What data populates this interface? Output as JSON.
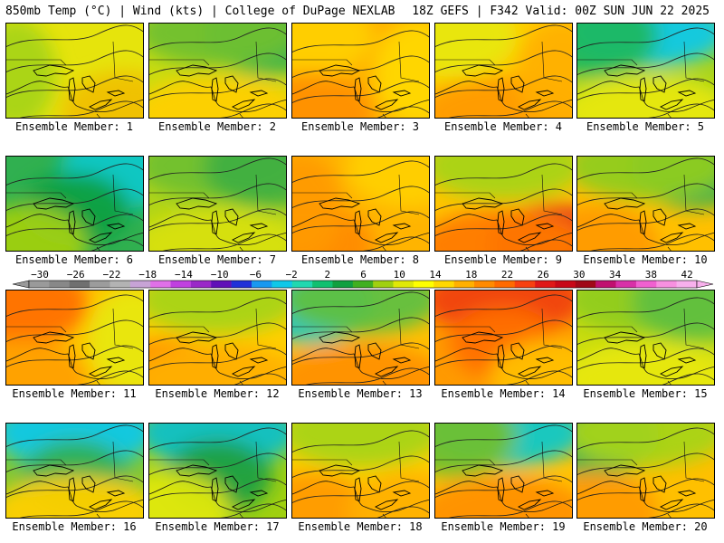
{
  "header": {
    "left_title": "850mb Temp (°C) | Wind (kts) | College of DuPage NEXLAB",
    "right_title": "18Z GEFS | F342 Valid: 00Z SUN JUN 22 2025"
  },
  "colorbar": {
    "labels": [
      "−30",
      "−26",
      "−22",
      "−18",
      "−14",
      "−10",
      "−6",
      "−2",
      "2",
      "6",
      "10",
      "14",
      "18",
      "22",
      "26",
      "30",
      "34",
      "38",
      "42"
    ],
    "colors": [
      "#9a9a9a",
      "#888888",
      "#707070",
      "#9c9c9c",
      "#b3b3b3",
      "#c7a3d6",
      "#e070e8",
      "#c040e0",
      "#9a28c8",
      "#6010b8",
      "#2030d8",
      "#1898f0",
      "#10c8e8",
      "#20d8b0",
      "#10c070",
      "#10a040",
      "#40b020",
      "#a0d010",
      "#e0e808",
      "#ffff00",
      "#ffd800",
      "#ffb000",
      "#ff8a00",
      "#ff6a00",
      "#f84010",
      "#e01818",
      "#c80818",
      "#a00818",
      "#c01070",
      "#d830a8",
      "#f060d0",
      "#f890e0",
      "#f8b0ec"
    ]
  },
  "panels": [
    {
      "label": "Ensemble Member: 1",
      "bg": "#e6e40c",
      "blobs": [
        {
          "c": "#a8d418",
          "s": "w"
        },
        {
          "c": "#f0c000",
          "s": "se"
        }
      ]
    },
    {
      "label": "Ensemble Member: 2",
      "bg": "#c8dc10",
      "blobs": [
        {
          "c": "#30b050",
          "s": "ne"
        },
        {
          "c": "#70c030",
          "s": "n"
        },
        {
          "c": "#ffd000",
          "s": "s"
        }
      ]
    },
    {
      "label": "Ensemble Member: 3",
      "bg": "#ffb000",
      "blobs": [
        {
          "c": "#ffd000",
          "s": "nw"
        },
        {
          "c": "#ff9000",
          "s": "sw"
        },
        {
          "c": "#ffd800",
          "s": "e"
        }
      ]
    },
    {
      "label": "Ensemble Member: 4",
      "bg": "#ffcc00",
      "blobs": [
        {
          "c": "#ff9a00",
          "s": "s"
        },
        {
          "c": "#e8e808",
          "s": "nw"
        },
        {
          "c": "#ffb000",
          "s": "e"
        }
      ]
    },
    {
      "label": "Ensemble Member: 5",
      "bg": "#a8d418",
      "blobs": [
        {
          "c": "#10c8e8",
          "s": "n"
        },
        {
          "c": "#20b860",
          "s": "nw"
        },
        {
          "c": "#e8e808",
          "s": "s"
        }
      ]
    },
    {
      "label": "Ensemble Member: 6",
      "bg": "#30b050",
      "blobs": [
        {
          "c": "#10c8c8",
          "s": "ne"
        },
        {
          "c": "#10a040",
          "s": "c"
        },
        {
          "c": "#a0d010",
          "s": "sw"
        }
      ]
    },
    {
      "label": "Ensemble Member: 7",
      "bg": "#b0d418",
      "blobs": [
        {
          "c": "#70c030",
          "s": "n"
        },
        {
          "c": "#d8e008",
          "s": "s"
        },
        {
          "c": "#40b040",
          "s": "ne"
        }
      ]
    },
    {
      "label": "Ensemble Member: 8",
      "bg": "#ffb400",
      "blobs": [
        {
          "c": "#ff8a00",
          "s": "sw"
        },
        {
          "c": "#ffd000",
          "s": "ne"
        },
        {
          "c": "#ff9a00",
          "s": "w"
        }
      ]
    },
    {
      "label": "Ensemble Member: 9",
      "bg": "#ffc400",
      "blobs": [
        {
          "c": "#e02020",
          "s": "se"
        },
        {
          "c": "#ff7a00",
          "s": "s"
        },
        {
          "c": "#a8d418",
          "s": "n"
        }
      ]
    },
    {
      "label": "Ensemble Member: 10",
      "bg": "#ffc000",
      "blobs": [
        {
          "c": "#30b050",
          "s": "ne"
        },
        {
          "c": "#90cc20",
          "s": "n"
        },
        {
          "c": "#ff9a00",
          "s": "sw"
        }
      ]
    },
    {
      "label": "Ensemble Member: 11",
      "bg": "#ffc400",
      "blobs": [
        {
          "c": "#ff7000",
          "s": "nw"
        },
        {
          "c": "#e8e808",
          "s": "e"
        },
        {
          "c": "#ffa000",
          "s": "sw"
        }
      ]
    },
    {
      "label": "Ensemble Member: 12",
      "bg": "#ffd000",
      "blobs": [
        {
          "c": "#a8d418",
          "s": "n"
        },
        {
          "c": "#ff8a00",
          "s": "sw"
        },
        {
          "c": "#ffb000",
          "s": "s"
        }
      ]
    },
    {
      "label": "Ensemble Member: 13",
      "bg": "#ffc000",
      "blobs": [
        {
          "c": "#10c8c8",
          "s": "nw"
        },
        {
          "c": "#60c040",
          "s": "n"
        },
        {
          "c": "#ff9000",
          "s": "s"
        }
      ]
    },
    {
      "label": "Ensemble Member: 14",
      "bg": "#ff9a00",
      "blobs": [
        {
          "c": "#f04010",
          "s": "n"
        },
        {
          "c": "#ff7000",
          "s": "c"
        },
        {
          "c": "#ffc000",
          "s": "se"
        }
      ]
    },
    {
      "label": "Ensemble Member: 15",
      "bg": "#c8dc10",
      "blobs": [
        {
          "c": "#90cc20",
          "s": "n"
        },
        {
          "c": "#e8e808",
          "s": "s"
        },
        {
          "c": "#60c040",
          "s": "ne"
        }
      ]
    },
    {
      "label": "Ensemble Member: 16",
      "bg": "#80c830",
      "blobs": [
        {
          "c": "#10c8e8",
          "s": "n"
        },
        {
          "c": "#30b050",
          "s": "c"
        },
        {
          "c": "#ffd000",
          "s": "s"
        }
      ]
    },
    {
      "label": "Ensemble Member: 17",
      "bg": "#a0d010",
      "blobs": [
        {
          "c": "#10c0c8",
          "s": "n"
        },
        {
          "c": "#20a040",
          "s": "c"
        },
        {
          "c": "#e0e808",
          "s": "sw"
        }
      ]
    },
    {
      "label": "Ensemble Member: 18",
      "bg": "#ffd000",
      "blobs": [
        {
          "c": "#a8d418",
          "s": "n"
        },
        {
          "c": "#ff9a00",
          "s": "sw"
        },
        {
          "c": "#ffb000",
          "s": "se"
        }
      ]
    },
    {
      "label": "Ensemble Member: 19",
      "bg": "#ffc400",
      "blobs": [
        {
          "c": "#10c8c8",
          "s": "n"
        },
        {
          "c": "#70c030",
          "s": "nw"
        },
        {
          "c": "#ff9000",
          "s": "s"
        }
      ]
    },
    {
      "label": "Ensemble Member: 20",
      "bg": "#ffc000",
      "blobs": [
        {
          "c": "#30b050",
          "s": "nw"
        },
        {
          "c": "#a8d418",
          "s": "n"
        },
        {
          "c": "#ff9a00",
          "s": "sw"
        }
      ]
    }
  ]
}
